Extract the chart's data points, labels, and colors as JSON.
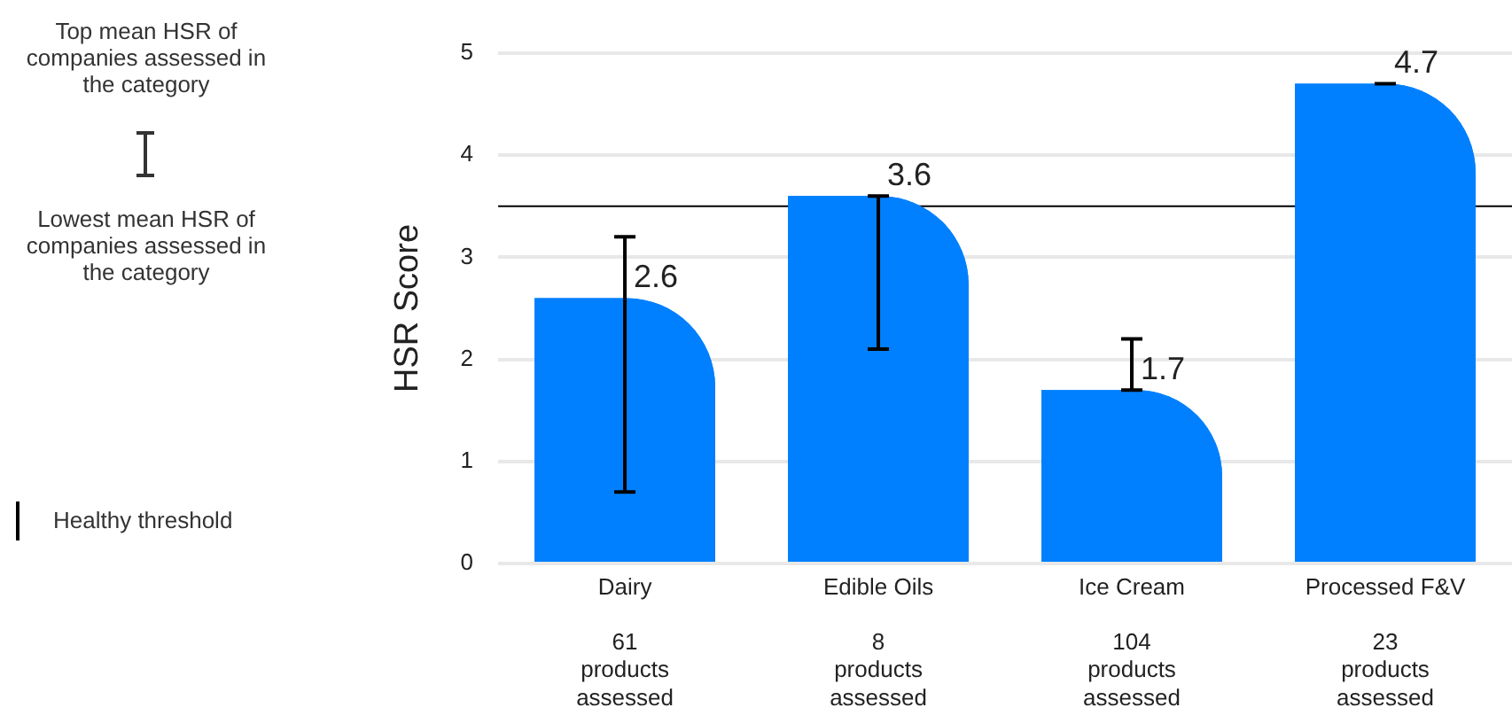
{
  "chart_data": {
    "type": "bar",
    "ylabel": "HSR Score",
    "categories": [
      "Dairy\n\n61\nproducts\nassessed",
      "Edible Oils\n\n8\nproducts\nassessed",
      "Ice Cream\n\n104\nproducts\nassessed",
      "Processed F&V\n\n23\nproducts\nassessed"
    ],
    "values": [
      2.6,
      3.6,
      1.7,
      4.7
    ],
    "color": "#0080ff",
    "errors": [
      [
        0.7,
        3.2
      ],
      [
        2.1,
        3.6
      ],
      [
        1.7,
        2.2
      ],
      [
        4.7,
        4.7
      ]
    ],
    "ylim": [
      0,
      5
    ],
    "yticks": [
      0,
      1,
      2,
      3,
      4,
      5
    ],
    "grid": "y",
    "data_labels": true,
    "legend": "left",
    "ref_lines": [
      {
        "axis": "y",
        "value": 3.5,
        "label": "Healthy threshold",
        "color": "#000000"
      }
    ],
    "annotations": [
      "Top mean HSR of companies assessed in the category",
      "Lowest mean HSR of companies assessed in the category"
    ]
  }
}
